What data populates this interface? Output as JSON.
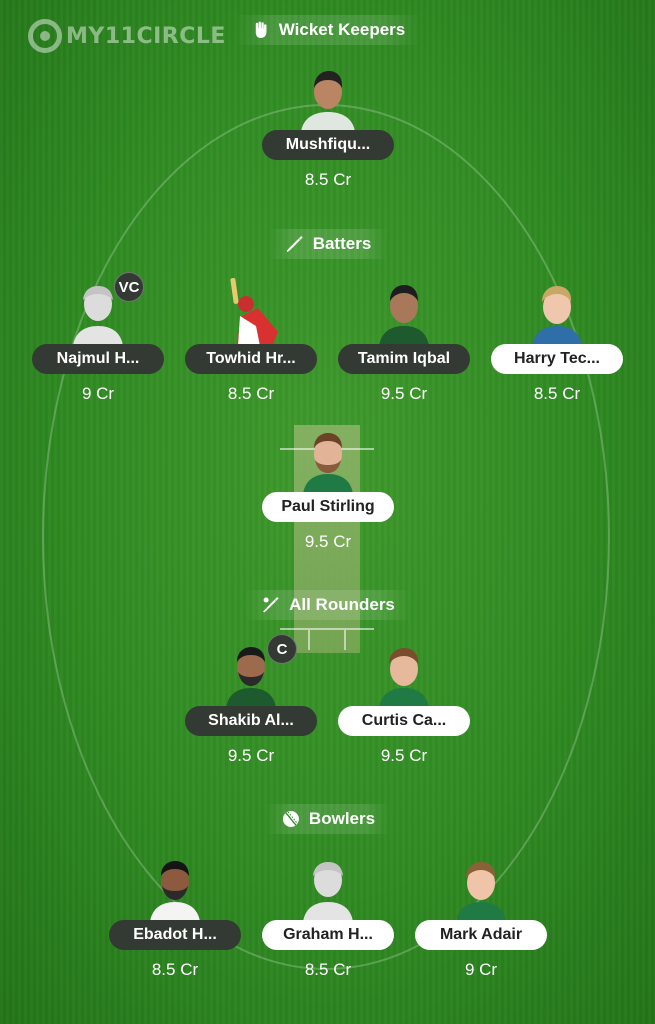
{
  "logo": {
    "text": "MY11CIRCLE"
  },
  "sections": {
    "wicket_keepers": "Wicket Keepers",
    "batters": "Batters",
    "all_rounders": "All Rounders",
    "bowlers": "Bowlers"
  },
  "players": {
    "wk1": {
      "name": "Mushfiqu...",
      "credits": "8.5 Cr"
    },
    "bat1": {
      "name": "Najmul H...",
      "credits": "9 Cr",
      "badge": "VC"
    },
    "bat2": {
      "name": "Towhid Hr...",
      "credits": "8.5 Cr"
    },
    "bat3": {
      "name": "Tamim Iqbal",
      "credits": "9.5 Cr"
    },
    "bat4": {
      "name": "Harry Tec...",
      "credits": "8.5 Cr"
    },
    "bat5": {
      "name": "Paul Stirling",
      "credits": "9.5 Cr"
    },
    "ar1": {
      "name": "Shakib Al...",
      "credits": "9.5 Cr",
      "badge": "C"
    },
    "ar2": {
      "name": "Curtis Ca...",
      "credits": "9.5 Cr"
    },
    "bowl1": {
      "name": "Ebadot H...",
      "credits": "8.5 Cr"
    },
    "bowl2": {
      "name": "Graham H...",
      "credits": "8.5 Cr"
    },
    "bowl3": {
      "name": "Mark Adair",
      "credits": "9 Cr"
    }
  },
  "colors": {
    "field": "#2f8a22",
    "pill_dark": "#333a33",
    "pill_light": "#ffffff",
    "jersey_bangladesh": "#1d5a2e",
    "jersey_ireland": "#1f7a44"
  }
}
